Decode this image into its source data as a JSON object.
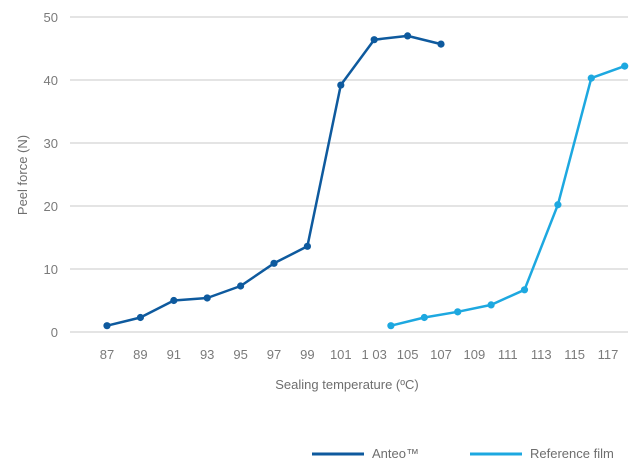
{
  "chart_data": {
    "type": "line",
    "xlabel": "Sealing temperature (ºC)",
    "ylabel": "Peel force (N)",
    "ylim": [
      0,
      50
    ],
    "yticks": [
      0,
      10,
      20,
      30,
      40,
      50
    ],
    "categories": [
      "87",
      "89",
      "91",
      "93",
      "95",
      "97",
      "99",
      "101",
      "1 03",
      "105",
      "107",
      "109",
      "111",
      "113",
      "115",
      "117"
    ],
    "grid": "horizontal",
    "legend_position": "bottom-right",
    "series": [
      {
        "name": "Anteo™",
        "color": "#0e5a9e",
        "points": [
          {
            "x": 87,
            "y": 1.0
          },
          {
            "x": 89,
            "y": 2.3
          },
          {
            "x": 91,
            "y": 5.0
          },
          {
            "x": 93,
            "y": 5.4
          },
          {
            "x": 95,
            "y": 7.3
          },
          {
            "x": 97,
            "y": 10.9
          },
          {
            "x": 99,
            "y": 13.6
          },
          {
            "x": 101,
            "y": 39.2
          },
          {
            "x": 103,
            "y": 46.4
          },
          {
            "x": 105,
            "y": 47.0
          },
          {
            "x": 107,
            "y": 45.7
          }
        ]
      },
      {
        "name": "Reference film",
        "color": "#1da8e0",
        "points": [
          {
            "x": 104,
            "y": 1.0
          },
          {
            "x": 106,
            "y": 2.3
          },
          {
            "x": 108,
            "y": 3.2
          },
          {
            "x": 110,
            "y": 4.3
          },
          {
            "x": 112,
            "y": 6.7
          },
          {
            "x": 114,
            "y": 20.2
          },
          {
            "x": 116,
            "y": 40.3
          },
          {
            "x": 118,
            "y": 42.2
          }
        ]
      }
    ]
  }
}
